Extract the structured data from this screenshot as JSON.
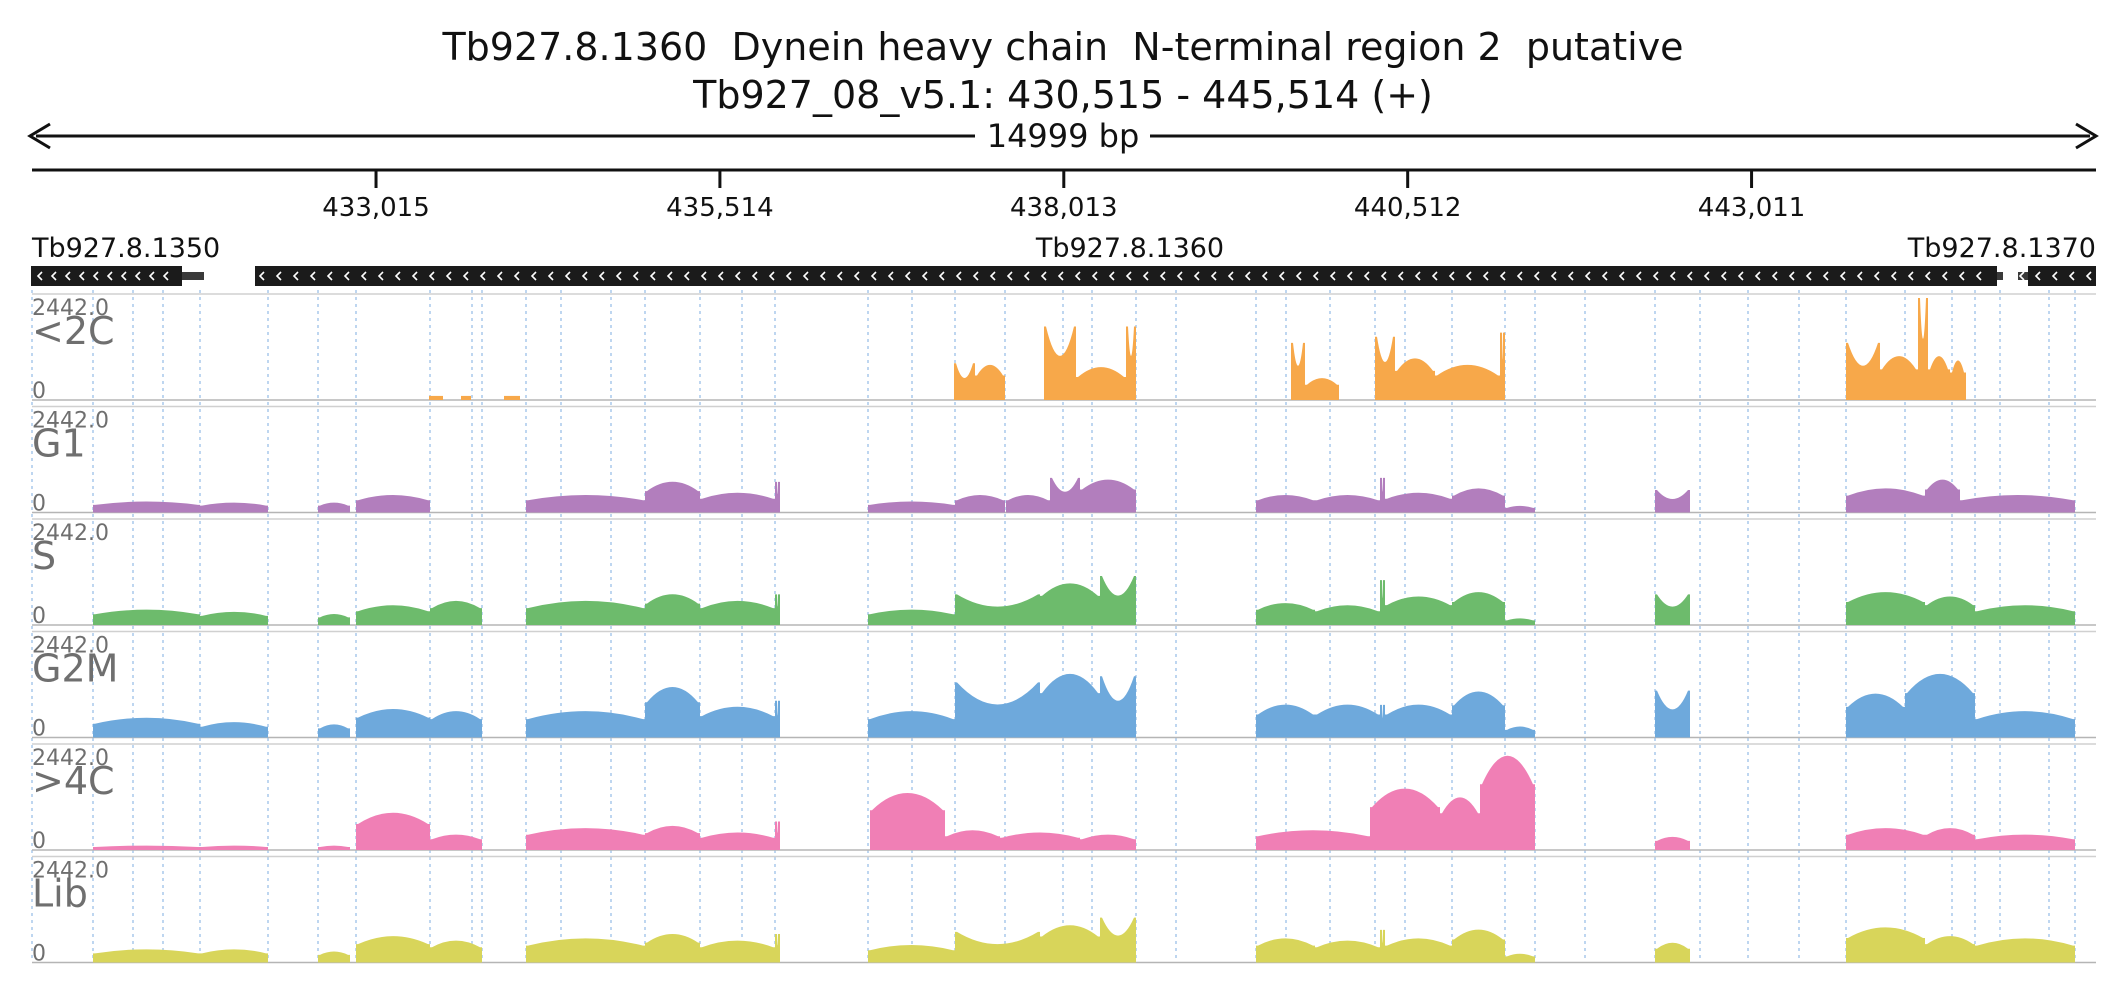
{
  "header": {
    "title_line1": "Tb927.8.1360  Dynein heavy chain  N-terminal region 2  putative",
    "title_line2": "Tb927_08_v5.1: 430,515 - 445,514 (+)"
  },
  "ruler": {
    "span_label": "14999 bp",
    "ticks": [
      "433,015",
      "435,514",
      "438,013",
      "440,512",
      "443,011"
    ]
  },
  "genes": [
    {
      "name": "Tb927.8.1350",
      "strand": "-"
    },
    {
      "name": "Tb927.8.1360",
      "strand": "-"
    },
    {
      "name": "Tb927.8.1370",
      "strand": "-"
    }
  ],
  "chart_data": {
    "type": "area",
    "region": {
      "chrom": "Tb927_08_v5.1",
      "start": 430515,
      "end": 445514,
      "strand": "+"
    },
    "x_ticks": [
      433015,
      435514,
      438013,
      440512,
      443011
    ],
    "ylim": [
      0,
      2442.0
    ],
    "tracks": [
      {
        "name": "<2C",
        "color": "#f7a84a",
        "max_label": "2442.0",
        "min_label": "0",
        "peaks": [
          [
            429,
            443,
            "plateau",
            0.04
          ],
          [
            461,
            471,
            "plateau",
            0.04
          ],
          [
            504,
            520,
            "plateau",
            0.04
          ],
          [
            954,
            975,
            "bowl",
            0.36
          ],
          [
            975,
            1005,
            "hill",
            0.32
          ],
          [
            1044,
            1076,
            "bowl",
            0.72
          ],
          [
            1076,
            1126,
            "hill",
            0.3
          ],
          [
            1126,
            1136,
            "bowl",
            0.72
          ],
          [
            1291,
            1305,
            "bowl",
            0.56
          ],
          [
            1305,
            1339,
            "hill",
            0.2
          ],
          [
            1375,
            1395,
            "bowl",
            0.62
          ],
          [
            1395,
            1435,
            "hill",
            0.38
          ],
          [
            1435,
            1500,
            "hill",
            0.32
          ],
          [
            1500,
            1505,
            "bowl",
            0.66
          ],
          [
            1846,
            1880,
            "bowl",
            0.56
          ],
          [
            1880,
            1918,
            "hill",
            0.4
          ],
          [
            1918,
            1928,
            "bowl",
            1.0
          ],
          [
            1928,
            1950,
            "hill",
            0.4
          ],
          [
            1950,
            1966,
            "hill",
            0.36
          ]
        ]
      },
      {
        "name": "G1",
        "color": "#b27ebd",
        "max_label": "2442.0",
        "min_label": "0",
        "peaks": [
          [
            93,
            200,
            "hill",
            0.1
          ],
          [
            200,
            268,
            "hill",
            0.09
          ],
          [
            318,
            350,
            "hill",
            0.09
          ],
          [
            356,
            430,
            "hill",
            0.16
          ],
          [
            526,
            645,
            "hill",
            0.16
          ],
          [
            645,
            700,
            "hill",
            0.28
          ],
          [
            700,
            775,
            "hill",
            0.18
          ],
          [
            775,
            780,
            "bowl",
            0.3
          ],
          [
            868,
            955,
            "hill",
            0.1
          ],
          [
            955,
            1005,
            "hill",
            0.16
          ],
          [
            1006,
            1050,
            "hill",
            0.16
          ],
          [
            1050,
            1080,
            "bowl",
            0.34
          ],
          [
            1080,
            1136,
            "hill",
            0.3
          ],
          [
            1256,
            1315,
            "hill",
            0.16
          ],
          [
            1315,
            1380,
            "hill",
            0.16
          ],
          [
            1380,
            1385,
            "bowl",
            0.34
          ],
          [
            1385,
            1452,
            "hill",
            0.18
          ],
          [
            1452,
            1505,
            "hill",
            0.22
          ],
          [
            1505,
            1535,
            "hill",
            0.06
          ],
          [
            1655,
            1690,
            "bowl",
            0.22
          ],
          [
            1846,
            1925,
            "hill",
            0.22
          ],
          [
            1925,
            1960,
            "hill",
            0.3
          ],
          [
            1960,
            2075,
            "hill",
            0.16
          ]
        ]
      },
      {
        "name": "S",
        "color": "#6dbb6c",
        "max_label": "2442.0",
        "min_label": "0",
        "peaks": [
          [
            93,
            200,
            "hill",
            0.14
          ],
          [
            200,
            268,
            "hill",
            0.12
          ],
          [
            318,
            350,
            "hill",
            0.1
          ],
          [
            356,
            430,
            "hill",
            0.18
          ],
          [
            430,
            482,
            "hill",
            0.22
          ],
          [
            526,
            645,
            "hill",
            0.22
          ],
          [
            645,
            700,
            "hill",
            0.28
          ],
          [
            700,
            775,
            "hill",
            0.22
          ],
          [
            775,
            780,
            "bowl",
            0.3
          ],
          [
            868,
            955,
            "hill",
            0.14
          ],
          [
            955,
            1040,
            "bowl",
            0.3
          ],
          [
            1040,
            1100,
            "hill",
            0.38
          ],
          [
            1100,
            1136,
            "bowl",
            0.48
          ],
          [
            1256,
            1315,
            "hill",
            0.2
          ],
          [
            1315,
            1380,
            "hill",
            0.18
          ],
          [
            1380,
            1385,
            "bowl",
            0.44
          ],
          [
            1385,
            1452,
            "hill",
            0.26
          ],
          [
            1452,
            1505,
            "hill",
            0.3
          ],
          [
            1505,
            1535,
            "hill",
            0.06
          ],
          [
            1655,
            1690,
            "bowl",
            0.3
          ],
          [
            1846,
            1925,
            "hill",
            0.3
          ],
          [
            1925,
            1975,
            "hill",
            0.26
          ],
          [
            1975,
            2075,
            "hill",
            0.18
          ]
        ]
      },
      {
        "name": "G2M",
        "color": "#6ea9dc",
        "max_label": "2442.0",
        "min_label": "0",
        "peaks": [
          [
            93,
            200,
            "hill",
            0.18
          ],
          [
            200,
            268,
            "hill",
            0.14
          ],
          [
            318,
            350,
            "hill",
            0.12
          ],
          [
            356,
            430,
            "hill",
            0.26
          ],
          [
            430,
            482,
            "hill",
            0.24
          ],
          [
            526,
            645,
            "hill",
            0.24
          ],
          [
            645,
            700,
            "hill",
            0.46
          ],
          [
            700,
            775,
            "hill",
            0.28
          ],
          [
            775,
            780,
            "bowl",
            0.36
          ],
          [
            868,
            955,
            "hill",
            0.24
          ],
          [
            955,
            1040,
            "bowl",
            0.54
          ],
          [
            1040,
            1100,
            "hill",
            0.58
          ],
          [
            1100,
            1136,
            "bowl",
            0.6
          ],
          [
            1256,
            1315,
            "hill",
            0.3
          ],
          [
            1315,
            1380,
            "hill",
            0.3
          ],
          [
            1380,
            1385,
            "bowl",
            0.32
          ],
          [
            1385,
            1452,
            "hill",
            0.3
          ],
          [
            1452,
            1505,
            "hill",
            0.42
          ],
          [
            1505,
            1535,
            "hill",
            0.1
          ],
          [
            1655,
            1690,
            "bowl",
            0.46
          ],
          [
            1846,
            1905,
            "hill",
            0.4
          ],
          [
            1905,
            1975,
            "hill",
            0.58
          ],
          [
            1975,
            2075,
            "hill",
            0.24
          ]
        ]
      },
      {
        "name": ">4C",
        "color": "#f07fb5",
        "max_label": "2442.0",
        "min_label": "0",
        "peaks": [
          [
            93,
            200,
            "hill",
            0.04
          ],
          [
            200,
            268,
            "hill",
            0.04
          ],
          [
            318,
            350,
            "hill",
            0.04
          ],
          [
            356,
            430,
            "hill",
            0.34
          ],
          [
            430,
            482,
            "hill",
            0.14
          ],
          [
            526,
            645,
            "hill",
            0.2
          ],
          [
            645,
            700,
            "hill",
            0.22
          ],
          [
            700,
            775,
            "hill",
            0.16
          ],
          [
            775,
            780,
            "bowl",
            0.28
          ],
          [
            870,
            945,
            "hill",
            0.52
          ],
          [
            945,
            1000,
            "hill",
            0.18
          ],
          [
            1000,
            1080,
            "hill",
            0.16
          ],
          [
            1080,
            1136,
            "hill",
            0.14
          ],
          [
            1256,
            1370,
            "hill",
            0.18
          ],
          [
            1370,
            1440,
            "hill",
            0.56
          ],
          [
            1440,
            1480,
            "hill",
            0.48
          ],
          [
            1480,
            1535,
            "hill",
            0.86
          ],
          [
            1655,
            1690,
            "hill",
            0.12
          ],
          [
            1846,
            1925,
            "hill",
            0.2
          ],
          [
            1925,
            1975,
            "hill",
            0.2
          ],
          [
            1975,
            2075,
            "hill",
            0.14
          ]
        ]
      },
      {
        "name": "Lib",
        "color": "#d8d55a",
        "max_label": "2442.0",
        "min_label": "0",
        "peaks": [
          [
            93,
            200,
            "hill",
            0.12
          ],
          [
            200,
            268,
            "hill",
            0.12
          ],
          [
            318,
            350,
            "hill",
            0.1
          ],
          [
            356,
            430,
            "hill",
            0.24
          ],
          [
            430,
            482,
            "hill",
            0.2
          ],
          [
            526,
            645,
            "hill",
            0.22
          ],
          [
            645,
            700,
            "hill",
            0.26
          ],
          [
            700,
            775,
            "hill",
            0.2
          ],
          [
            775,
            780,
            "bowl",
            0.28
          ],
          [
            868,
            955,
            "hill",
            0.16
          ],
          [
            955,
            1040,
            "bowl",
            0.3
          ],
          [
            1040,
            1100,
            "hill",
            0.34
          ],
          [
            1100,
            1136,
            "bowl",
            0.44
          ],
          [
            1256,
            1315,
            "hill",
            0.22
          ],
          [
            1315,
            1380,
            "hill",
            0.2
          ],
          [
            1380,
            1385,
            "bowl",
            0.32
          ],
          [
            1385,
            1452,
            "hill",
            0.22
          ],
          [
            1452,
            1505,
            "hill",
            0.3
          ],
          [
            1505,
            1535,
            "hill",
            0.08
          ],
          [
            1655,
            1690,
            "hill",
            0.18
          ],
          [
            1846,
            1925,
            "hill",
            0.32
          ],
          [
            1925,
            1975,
            "hill",
            0.24
          ],
          [
            1975,
            2075,
            "hill",
            0.22
          ]
        ]
      }
    ]
  }
}
